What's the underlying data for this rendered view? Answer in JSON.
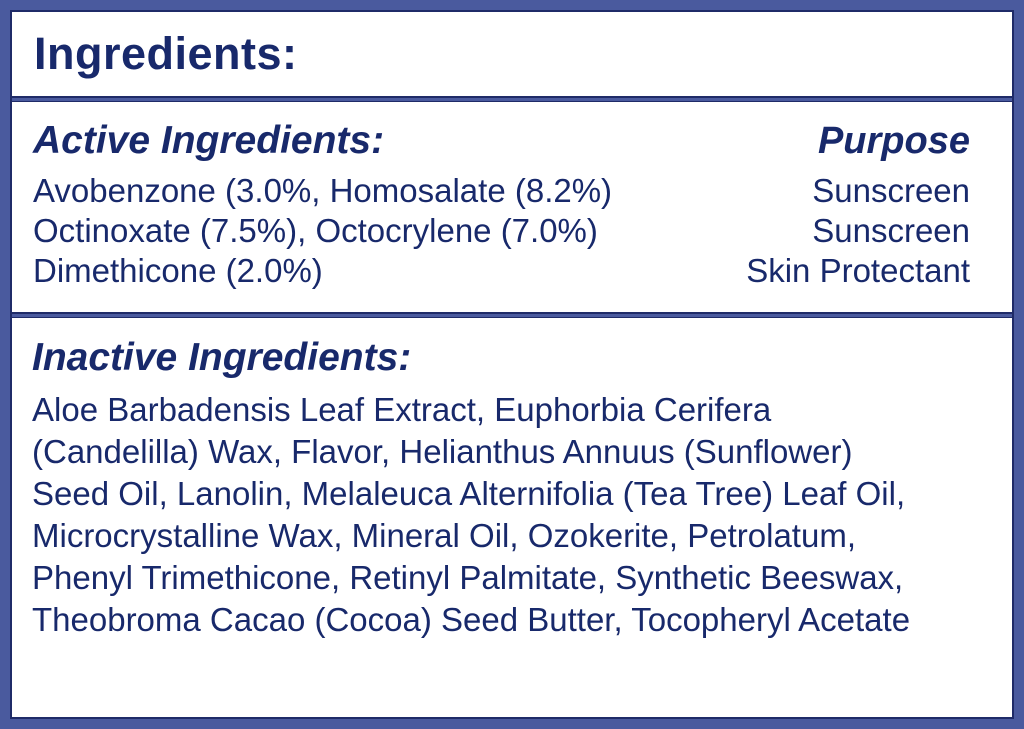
{
  "page": {
    "title": "Ingredients:"
  },
  "active": {
    "heading": "Active Ingredients:",
    "purpose_heading": "Purpose",
    "rows": [
      {
        "ingredient": "Avobenzone (3.0%, Homosalate (8.2%)",
        "purpose": "Sunscreen"
      },
      {
        "ingredient": "Octinoxate (7.5%), Octocrylene (7.0%)",
        "purpose": "Sunscreen"
      },
      {
        "ingredient": "Dimethicone (2.0%)",
        "purpose": "Skin Protectant"
      }
    ]
  },
  "inactive": {
    "heading": "Inactive Ingredients:",
    "lines": [
      "Aloe Barbadensis Leaf Extract, Euphorbia Cerifera",
      "(Candelilla) Wax, Flavor, Helianthus Annuus (Sunflower)",
      "Seed Oil, Lanolin, Melaleuca Alternifolia (Tea Tree) Leaf Oil,",
      "Microcrystalline Wax, Mineral Oil, Ozokerite, Petrolatum,",
      "Phenyl Trimethicone, Retinyl Palmitate, Synthetic Beeswax,",
      "Theobroma Cacao (Cocoa) Seed Butter, Tocopheryl Acetate"
    ]
  },
  "colors": {
    "frame": "#4a5a9e",
    "frame_inner_line": "#1f2b68",
    "text": "#18296b",
    "background": "#ffffff"
  }
}
